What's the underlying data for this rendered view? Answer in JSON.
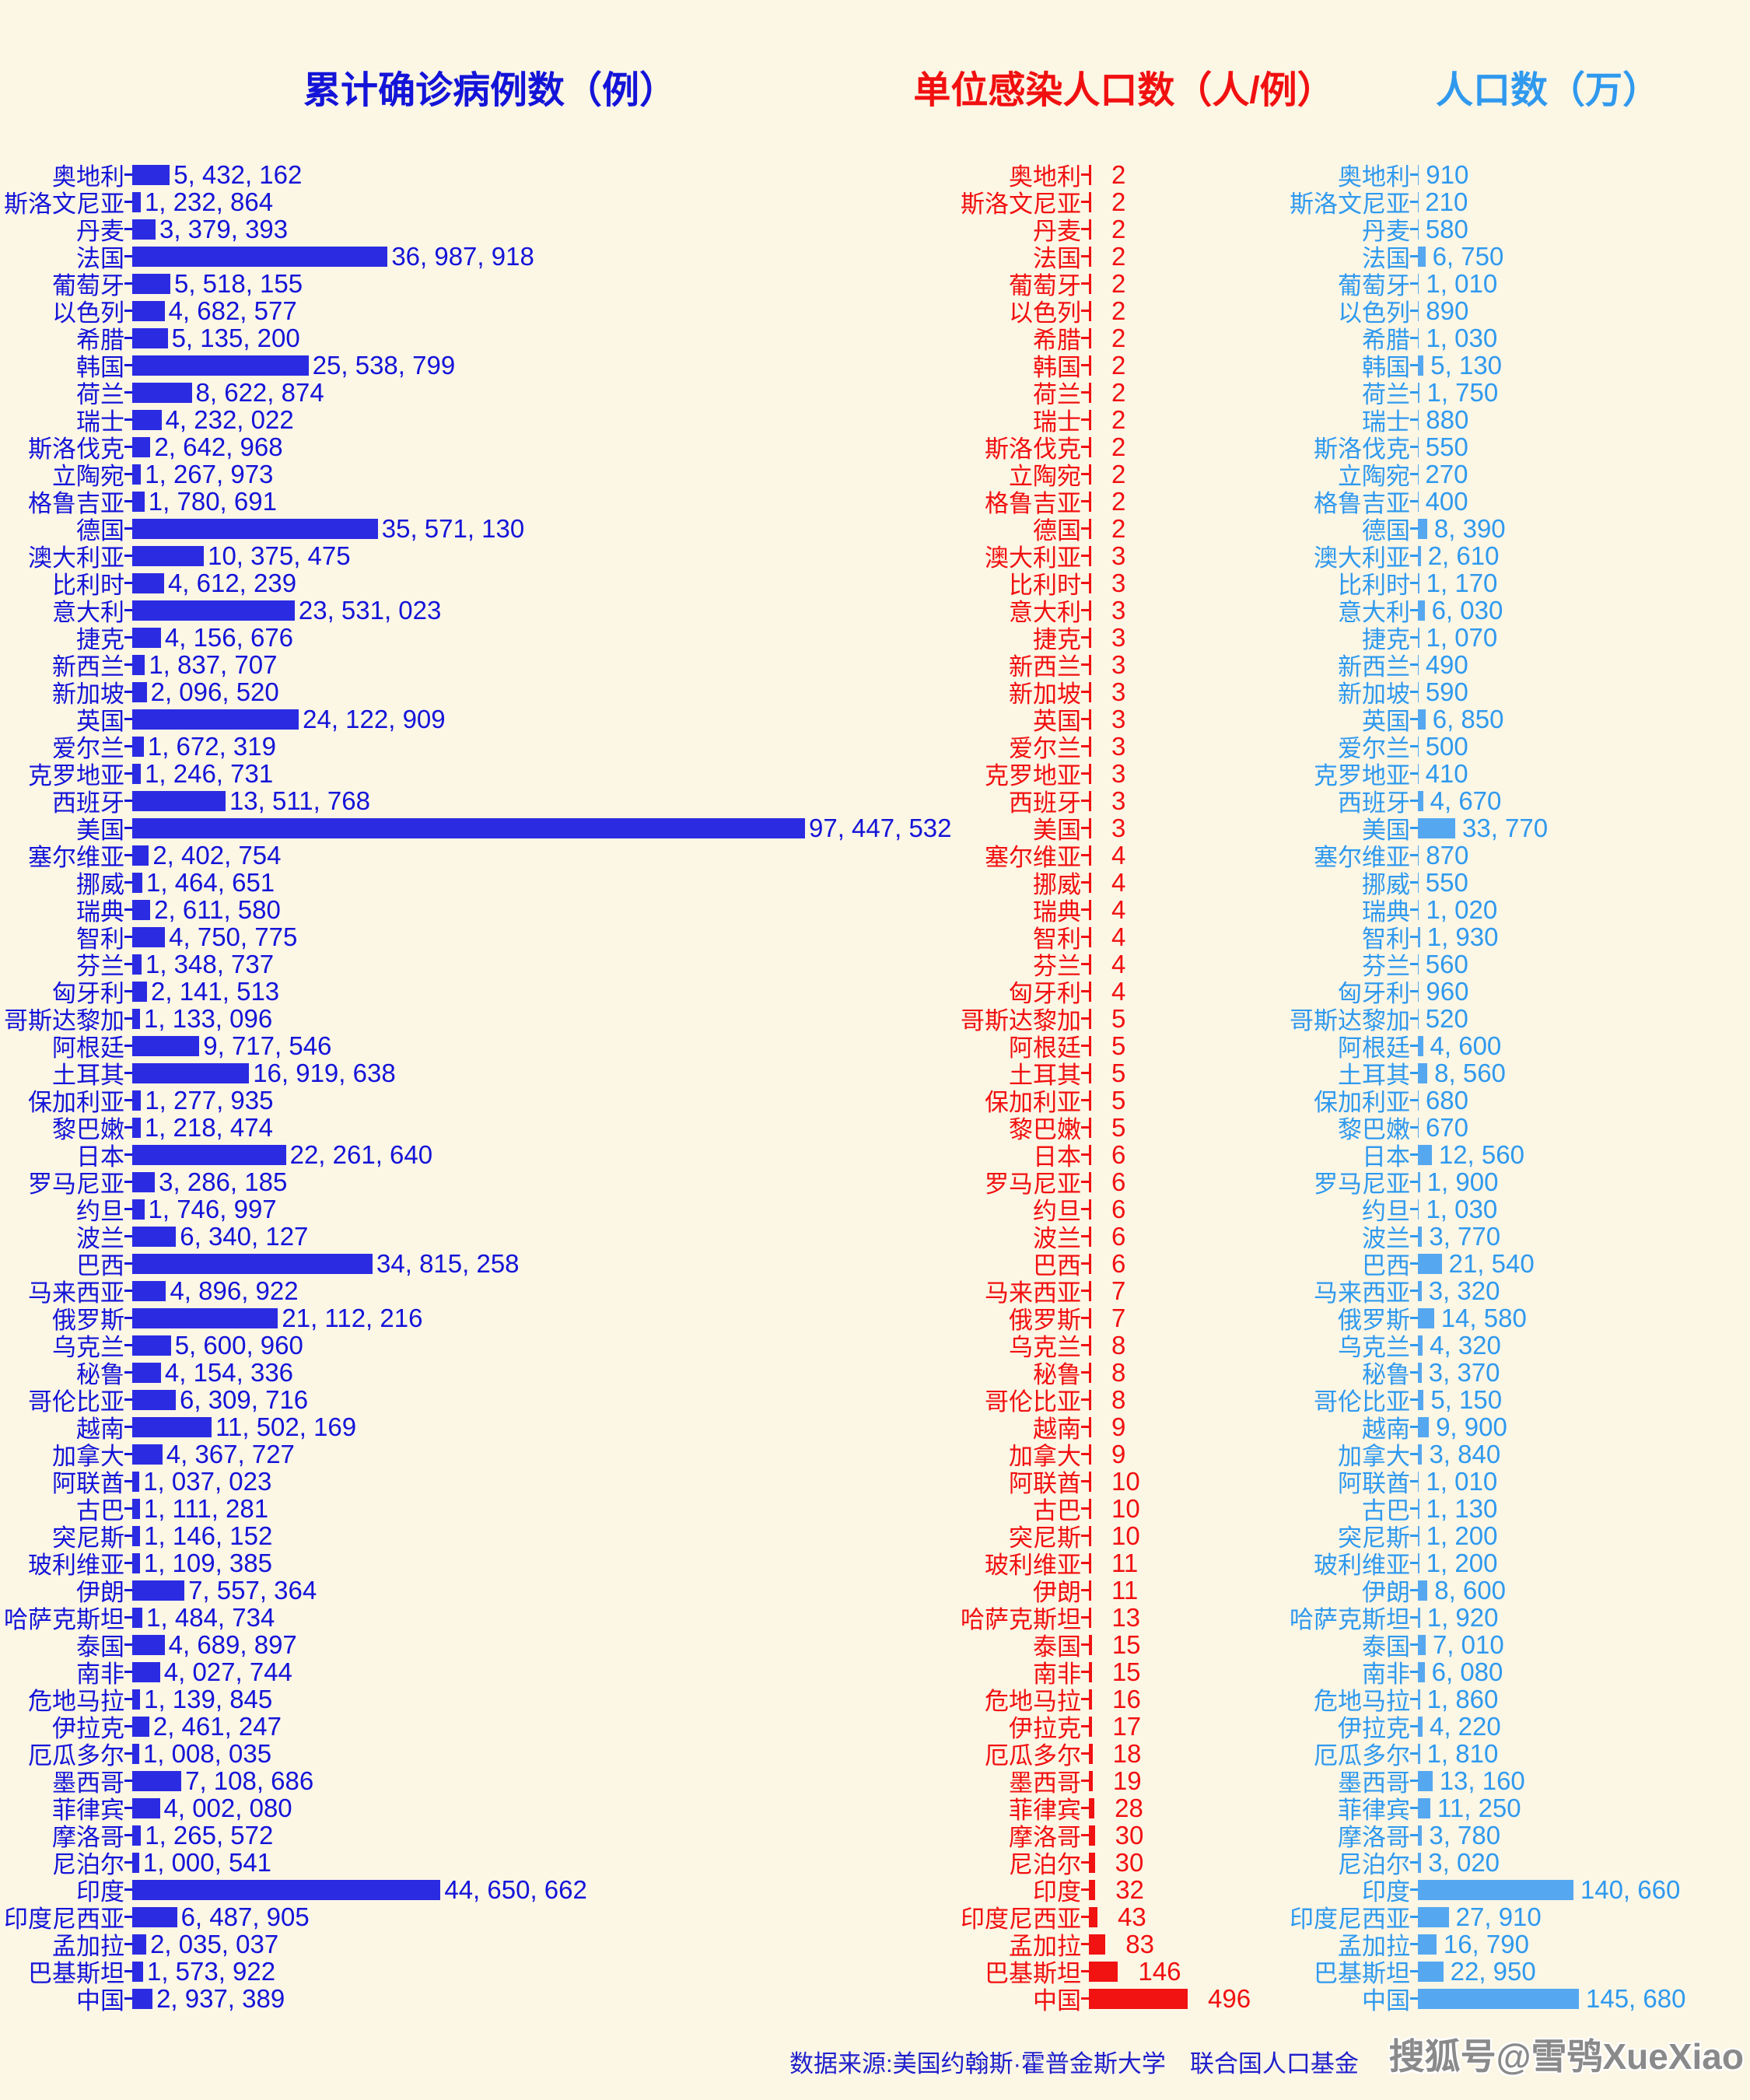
{
  "titles": {
    "left": "累计确诊病例数（例）",
    "middle": "单位感染人口数（人/例）",
    "right": "人口数（万）"
  },
  "footer": {
    "source": "数据来源:美国约翰斯·霍普金斯大学　联合国人口基金",
    "watermark": "搜狐号@雪鸮XueXiao"
  },
  "colors": {
    "background": "#FCF6E5",
    "left_text": "#1414D8",
    "left_bar": "#2B2BE2",
    "mid_text": "#F11010",
    "mid_bar": "#F11212",
    "right_text": "#2F99EE",
    "right_bar": "#55A7F0",
    "footer_text": "#1F1FCC",
    "watermark": "#8A8A8A"
  },
  "chart_data": {
    "type": "bar",
    "orientation": "horizontal",
    "grid": false,
    "legend": "none",
    "value_label_format": "thousands separated by ', '",
    "categories": [
      "奥地利",
      "斯洛文尼亚",
      "丹麦",
      "法国",
      "葡萄牙",
      "以色列",
      "希腊",
      "韩国",
      "荷兰",
      "瑞士",
      "斯洛伐克",
      "立陶宛",
      "格鲁吉亚",
      "德国",
      "澳大利亚",
      "比利时",
      "意大利",
      "捷克",
      "新西兰",
      "新加坡",
      "英国",
      "爱尔兰",
      "克罗地亚",
      "西班牙",
      "美国",
      "塞尔维亚",
      "挪威",
      "瑞典",
      "智利",
      "芬兰",
      "匈牙利",
      "哥斯达黎加",
      "阿根廷",
      "土耳其",
      "保加利亚",
      "黎巴嫩",
      "日本",
      "罗马尼亚",
      "约旦",
      "波兰",
      "巴西",
      "马来西亚",
      "俄罗斯",
      "乌克兰",
      "秘鲁",
      "哥伦比亚",
      "越南",
      "加拿大",
      "阿联酋",
      "古巴",
      "突尼斯",
      "玻利维亚",
      "伊朗",
      "哈萨克斯坦",
      "泰国",
      "南非",
      "危地马拉",
      "伊拉克",
      "厄瓜多尔",
      "墨西哥",
      "菲律宾",
      "摩洛哥",
      "尼泊尔",
      "印度",
      "印度尼西亚",
      "孟加拉",
      "巴基斯坦",
      "中国"
    ],
    "series": [
      {
        "name": "累计确诊病例数（例）",
        "unit": "例",
        "color": "#2B2BE2",
        "xlim": [
          0,
          97447532
        ],
        "values": [
          5432162,
          1232864,
          3379393,
          36987918,
          5518155,
          4682577,
          5135200,
          25538799,
          8622874,
          4232022,
          2642968,
          1267973,
          1780691,
          35571130,
          10375475,
          4612239,
          23531023,
          4156676,
          1837707,
          2096520,
          24122909,
          1672319,
          1246731,
          13511768,
          97447532,
          2402754,
          1464651,
          2611580,
          4750775,
          1348737,
          2141513,
          1133096,
          9717546,
          16919638,
          1277935,
          1218474,
          22261640,
          3286185,
          1746997,
          6340127,
          34815258,
          4896922,
          21112216,
          5600960,
          4154336,
          6309716,
          11502169,
          4367727,
          1037023,
          1111281,
          1146152,
          1109385,
          7557364,
          1484734,
          4689897,
          4027744,
          1139845,
          2461247,
          1008035,
          7108686,
          4002080,
          1265572,
          1000541,
          44650662,
          6487905,
          2035037,
          1573922,
          2937389
        ]
      },
      {
        "name": "单位感染人口数（人/例）",
        "unit": "人/例",
        "color": "#F11212",
        "xlim": [
          0,
          496
        ],
        "values": [
          2,
          2,
          2,
          2,
          2,
          2,
          2,
          2,
          2,
          2,
          2,
          2,
          2,
          2,
          3,
          3,
          3,
          3,
          3,
          3,
          3,
          3,
          3,
          3,
          3,
          4,
          4,
          4,
          4,
          4,
          4,
          5,
          5,
          5,
          5,
          5,
          6,
          6,
          6,
          6,
          6,
          7,
          7,
          8,
          8,
          8,
          9,
          9,
          10,
          10,
          10,
          11,
          11,
          13,
          15,
          15,
          16,
          17,
          18,
          19,
          28,
          30,
          30,
          32,
          43,
          83,
          146,
          496
        ]
      },
      {
        "name": "人口数（万）",
        "unit": "万",
        "color": "#55A7F0",
        "xlim": [
          0,
          145680
        ],
        "values": [
          910,
          210,
          580,
          6750,
          1010,
          890,
          1030,
          5130,
          1750,
          880,
          550,
          270,
          400,
          8390,
          2610,
          1170,
          6030,
          1070,
          490,
          590,
          6850,
          500,
          410,
          4670,
          33770,
          870,
          550,
          1020,
          1930,
          560,
          960,
          520,
          4600,
          8560,
          680,
          670,
          12560,
          1900,
          1030,
          3770,
          21540,
          3320,
          14580,
          4320,
          3370,
          5150,
          9900,
          3840,
          1010,
          1130,
          1200,
          1200,
          8600,
          1920,
          7010,
          6080,
          1860,
          4220,
          1810,
          13160,
          11250,
          3780,
          3020,
          140660,
          27910,
          16790,
          22950,
          145680
        ]
      }
    ]
  }
}
